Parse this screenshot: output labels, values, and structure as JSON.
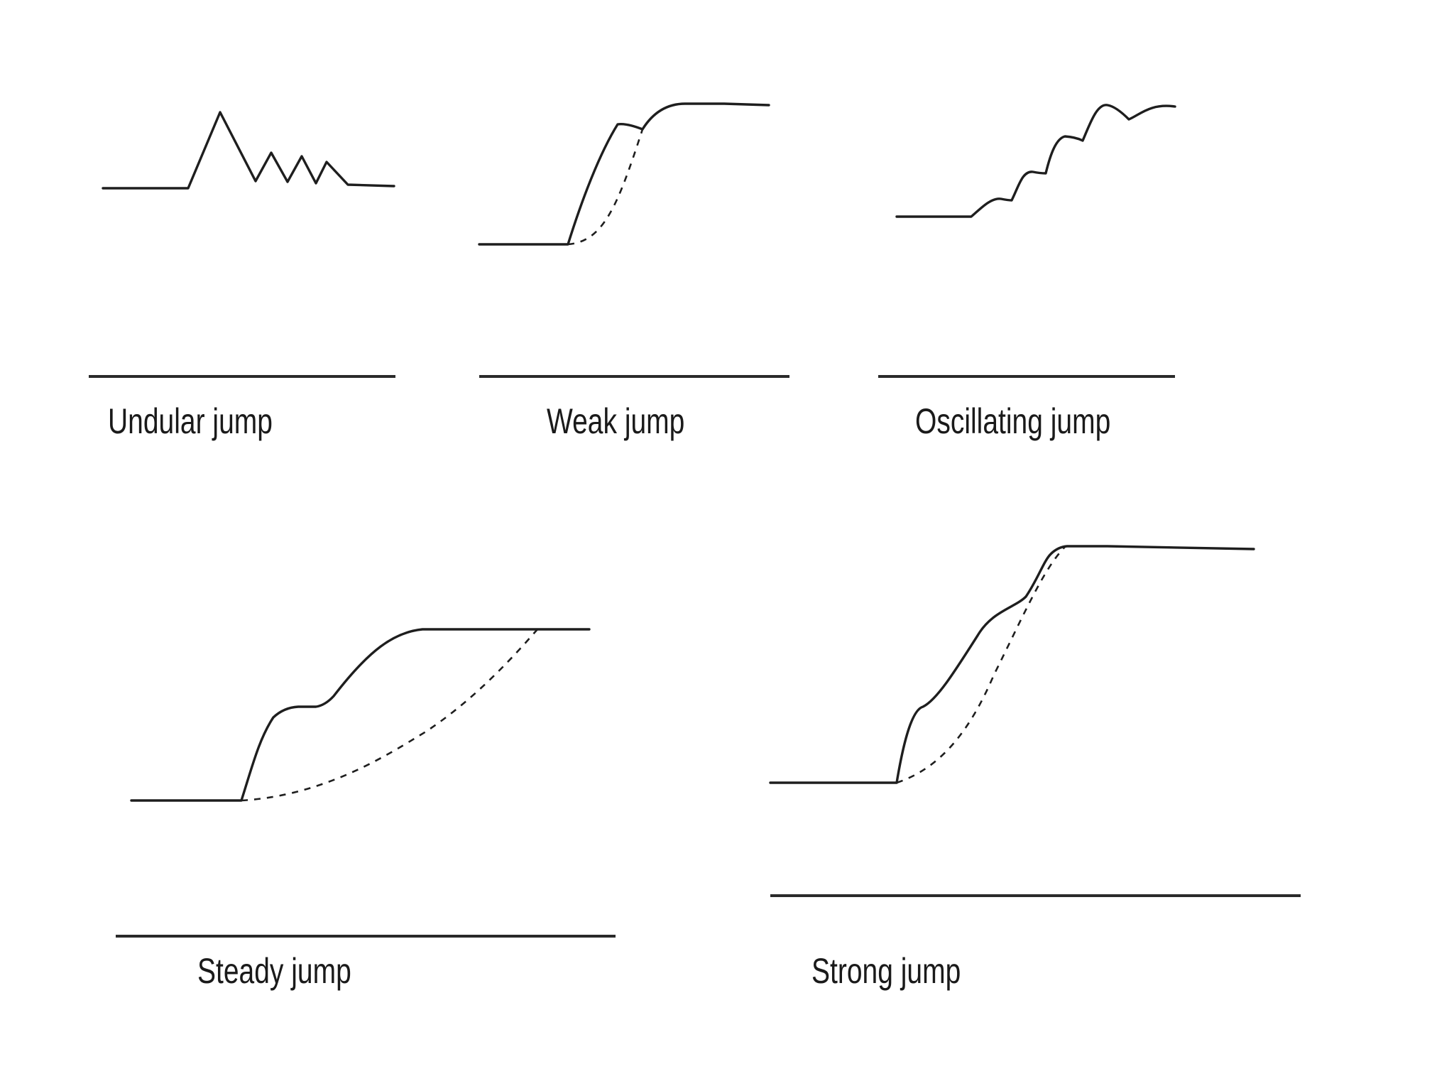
{
  "panels": [
    {
      "id": "undular",
      "label": "Undular jump"
    },
    {
      "id": "weak",
      "label": "Weak jump"
    },
    {
      "id": "oscillating",
      "label": "Oscillating jump"
    },
    {
      "id": "steady",
      "label": "Steady jump"
    },
    {
      "id": "strong",
      "label": "Strong jump"
    }
  ]
}
